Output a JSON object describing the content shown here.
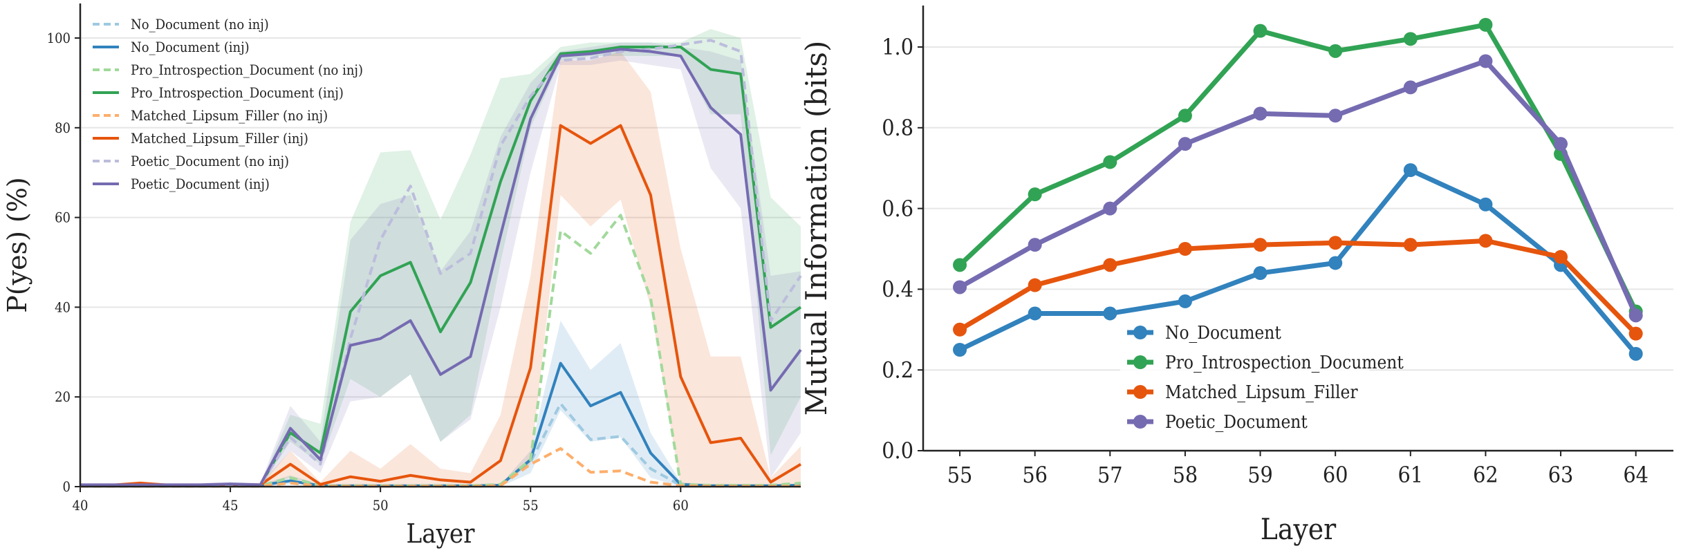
{
  "chart_data": [
    {
      "type": "line",
      "xlabel": "Layer",
      "ylabel": "P(yes) (%)",
      "xlim": [
        40,
        64
      ],
      "ylim": [
        0,
        100
      ],
      "xticks": [
        40,
        45,
        50,
        55,
        60
      ],
      "yticks": [
        0,
        20,
        40,
        60,
        80,
        100
      ],
      "grid": "horizontal",
      "legend_position": "top-left",
      "x": [
        40,
        41,
        42,
        43,
        44,
        45,
        46,
        47,
        48,
        49,
        50,
        51,
        52,
        53,
        54,
        55,
        56,
        57,
        58,
        59,
        60,
        61,
        62,
        63,
        64
      ],
      "series": [
        {
          "name": "No_Document (no inj)",
          "color": "#9ecae1",
          "dashed": true,
          "values": [
            0.2,
            0.2,
            0.2,
            0.2,
            0.2,
            0.2,
            0.2,
            0.8,
            0.1,
            0.1,
            0.1,
            0.1,
            0.1,
            0.1,
            0.2,
            5.5,
            18.5,
            10.5,
            11.2,
            4,
            0.3,
            0.2,
            0.2,
            0.2,
            0.2
          ]
        },
        {
          "name": "No_Document (inj)",
          "color": "#3182bd",
          "dashed": false,
          "values": [
            0.3,
            0.3,
            0.3,
            0.3,
            0.3,
            0.3,
            0.3,
            1.3,
            0.2,
            0.2,
            0.2,
            0.2,
            0.2,
            0.2,
            0.3,
            6,
            27.5,
            18,
            21,
            7.5,
            0.5,
            0.2,
            0.2,
            0.2,
            0.3
          ],
          "band": [
            [
              0,
              0.5
            ],
            [
              0,
              0.5
            ],
            [
              0,
              0.5
            ],
            [
              0,
              0.5
            ],
            [
              0,
              0.5
            ],
            [
              0,
              0.5
            ],
            [
              0,
              0.5
            ],
            [
              0.5,
              2.5
            ],
            [
              0,
              0.5
            ],
            [
              0,
              0.5
            ],
            [
              0,
              0.5
            ],
            [
              0,
              0.5
            ],
            [
              0,
              0.5
            ],
            [
              0,
              0.5
            ],
            [
              0,
              0.5
            ],
            [
              3,
              8
            ],
            [
              17,
              37
            ],
            [
              10,
              26
            ],
            [
              11,
              32
            ],
            [
              2,
              12
            ],
            [
              0,
              1
            ],
            [
              0,
              0.5
            ],
            [
              0,
              0.5
            ],
            [
              0,
              0.5
            ],
            [
              0,
              0.5
            ]
          ]
        },
        {
          "name": "Pro_Introspection_Document (no inj)",
          "color": "#a1d99b",
          "dashed": true,
          "values": [
            0.2,
            0.2,
            0.2,
            0.2,
            0.2,
            0.2,
            0.2,
            2,
            0.2,
            0.2,
            0.2,
            0.2,
            0.2,
            0.2,
            0.5,
            6,
            57,
            52,
            60.5,
            42,
            0.5,
            0.3,
            0.3,
            0.3,
            0.8
          ]
        },
        {
          "name": "Pro_Introspection_Document (inj)",
          "color": "#31a354",
          "dashed": false,
          "values": [
            0.3,
            0.3,
            0.3,
            0.3,
            0.3,
            0.3,
            0.3,
            12,
            7.5,
            39,
            47,
            50,
            34.5,
            45.5,
            68,
            86,
            96.5,
            97,
            98,
            98,
            98,
            93,
            92,
            35.5,
            40
          ],
          "band": [
            [
              0,
              0.5
            ],
            [
              0,
              0.5
            ],
            [
              0,
              0.5
            ],
            [
              0,
              0.5
            ],
            [
              0,
              0.5
            ],
            [
              0,
              0.5
            ],
            [
              0,
              0.5
            ],
            [
              10,
              16
            ],
            [
              5,
              14
            ],
            [
              24,
              59
            ],
            [
              20,
              74.5
            ],
            [
              25,
              75
            ],
            [
              10,
              59.5
            ],
            [
              16,
              74
            ],
            [
              50,
              91
            ],
            [
              80,
              92
            ],
            [
              95,
              98
            ],
            [
              96,
              99
            ],
            [
              96,
              99
            ],
            [
              96,
              99
            ],
            [
              96,
              99
            ],
            [
              83,
              102
            ],
            [
              83,
              100
            ],
            [
              7,
              64.5
            ],
            [
              20,
              58
            ]
          ]
        },
        {
          "name": "Matched_Lipsum_Filler (no inj)",
          "color": "#fdae6b",
          "dashed": true,
          "values": [
            0.1,
            0.1,
            0.1,
            0.1,
            0.1,
            0.1,
            0.1,
            0.8,
            0.1,
            0.1,
            0.1,
            0.1,
            0.1,
            0.1,
            0.2,
            5,
            8.5,
            3.2,
            3.5,
            1,
            0.2,
            0.1,
            0.1,
            0.1,
            0.1
          ]
        },
        {
          "name": "Matched_Lipsum_Filler (inj)",
          "color": "#e6550d",
          "dashed": false,
          "values": [
            0.2,
            0.3,
            0.8,
            0.3,
            0.3,
            0.5,
            0.4,
            5,
            0.5,
            2.2,
            1.2,
            2.5,
            1.5,
            1,
            5.8,
            26.5,
            80.5,
            76.5,
            80.5,
            65,
            24.5,
            9.8,
            10.8,
            1,
            5
          ],
          "band": [
            [
              0,
              0.5
            ],
            [
              0,
              0.6
            ],
            [
              0,
              1.2
            ],
            [
              0,
              0.6
            ],
            [
              0,
              0.6
            ],
            [
              0,
              0.8
            ],
            [
              0,
              0.7
            ],
            [
              2,
              8
            ],
            [
              0,
              1
            ],
            [
              0,
              8
            ],
            [
              0,
              4
            ],
            [
              0,
              9.5
            ],
            [
              0,
              4
            ],
            [
              0,
              3
            ],
            [
              0,
              16
            ],
            [
              5,
              47
            ],
            [
              65,
              95
            ],
            [
              58,
              95
            ],
            [
              64,
              97
            ],
            [
              40,
              88
            ],
            [
              0,
              53
            ],
            [
              0,
              29
            ],
            [
              0,
              29
            ],
            [
              0,
              2
            ],
            [
              0,
              9
            ]
          ]
        },
        {
          "name": "Poetic_Document (no inj)",
          "color": "#bcbddc",
          "dashed": true,
          "values": [
            0.3,
            0.3,
            0.3,
            0.3,
            0.3,
            0.3,
            0.3,
            11,
            5,
            33,
            55,
            67,
            47.5,
            52,
            76,
            87,
            95,
            95.5,
            97,
            97.5,
            98.5,
            99.5,
            97,
            37,
            47
          ]
        },
        {
          "name": "Poetic_Document (inj)",
          "color": "#756bb1",
          "dashed": false,
          "values": [
            0.4,
            0.4,
            0.4,
            0.4,
            0.4,
            0.6,
            0.4,
            13,
            6,
            31.5,
            33,
            37,
            25,
            29,
            56,
            82,
            96,
            96.5,
            97.5,
            97,
            96,
            84.5,
            78.5,
            21.5,
            30.5
          ],
          "band": [
            [
              0,
              0.8
            ],
            [
              0,
              0.8
            ],
            [
              0,
              0.8
            ],
            [
              0,
              0.8
            ],
            [
              0,
              0.8
            ],
            [
              0,
              1
            ],
            [
              0,
              0.8
            ],
            [
              8,
              18
            ],
            [
              3,
              10
            ],
            [
              19,
              55
            ],
            [
              20,
              63
            ],
            [
              25,
              65
            ],
            [
              10,
              48
            ],
            [
              15,
              57
            ],
            [
              40,
              78
            ],
            [
              70,
              90
            ],
            [
              94,
              97
            ],
            [
              94,
              98
            ],
            [
              95,
              99
            ],
            [
              94,
              99
            ],
            [
              93,
              98
            ],
            [
              71,
              97
            ],
            [
              62,
              95
            ],
            [
              2,
              47
            ],
            [
              12,
              48
            ]
          ]
        }
      ]
    },
    {
      "type": "line",
      "xlabel": "Layer",
      "ylabel": "Mutual Information (bits)",
      "xlim": [
        54.5,
        64.5
      ],
      "ylim": [
        0,
        1.1
      ],
      "xticks": [
        55,
        56,
        57,
        58,
        59,
        60,
        61,
        62,
        63,
        64
      ],
      "yticks": [
        0.0,
        0.2,
        0.4,
        0.6,
        0.8,
        1.0
      ],
      "ytick_labels": [
        "0.0",
        "0.2",
        "0.4",
        "0.6",
        "0.8",
        "1.0"
      ],
      "grid": "horizontal",
      "legend_position": "lower-center",
      "markers": true,
      "x": [
        55,
        56,
        57,
        58,
        59,
        60,
        61,
        62,
        63,
        64
      ],
      "series": [
        {
          "name": "No_Document",
          "color": "#3182bd",
          "values": [
            0.25,
            0.34,
            0.34,
            0.37,
            0.44,
            0.465,
            0.695,
            0.61,
            0.46,
            0.24
          ]
        },
        {
          "name": "Pro_Introspection_Document",
          "color": "#31a354",
          "values": [
            0.46,
            0.635,
            0.715,
            0.83,
            1.04,
            0.99,
            1.02,
            1.055,
            0.735,
            0.345
          ]
        },
        {
          "name": "Matched_Lipsum_Filler",
          "color": "#e6550d",
          "values": [
            0.3,
            0.41,
            0.46,
            0.5,
            0.51,
            0.515,
            0.51,
            0.52,
            0.48,
            0.29
          ]
        },
        {
          "name": "Poetic_Document",
          "color": "#756bb1",
          "values": [
            0.405,
            0.51,
            0.6,
            0.76,
            0.835,
            0.83,
            0.9,
            0.965,
            0.76,
            0.335
          ]
        }
      ]
    }
  ]
}
